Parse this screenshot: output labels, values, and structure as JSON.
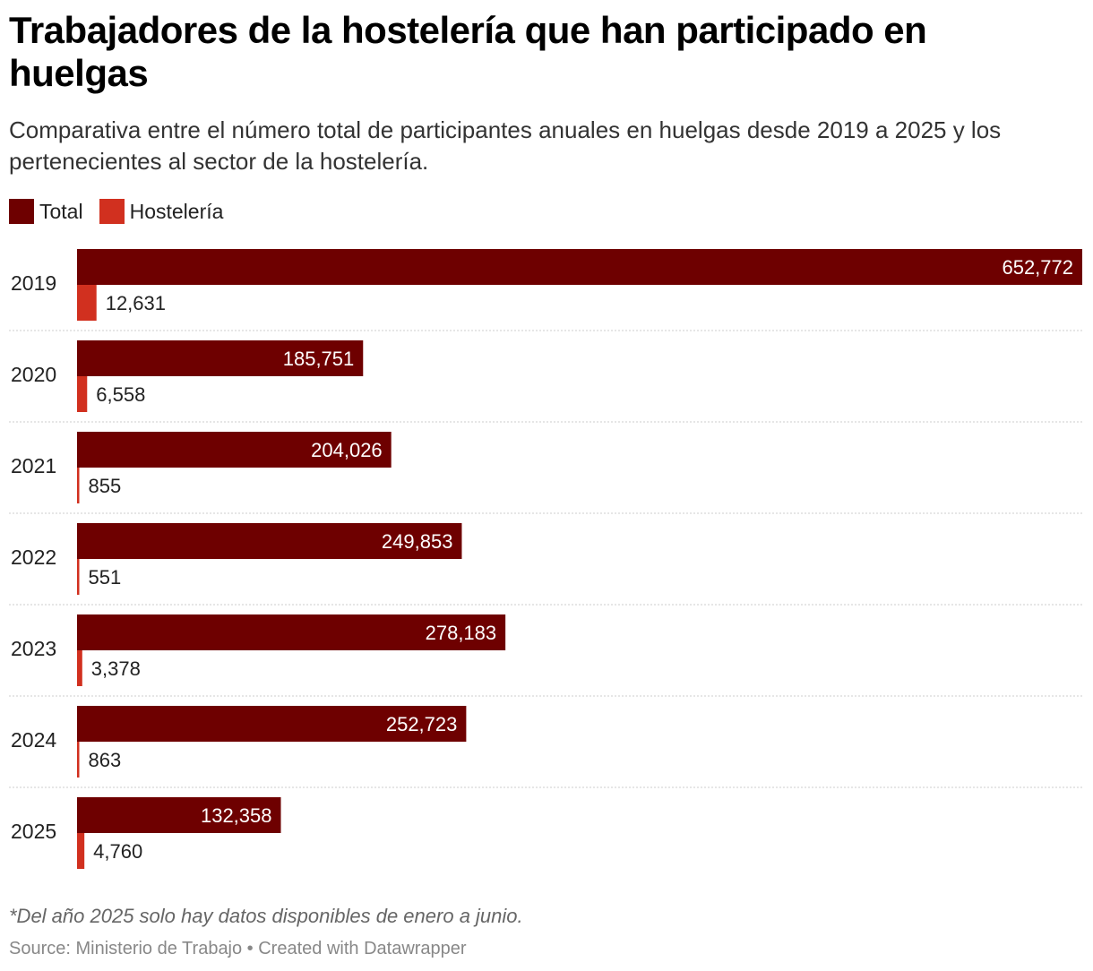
{
  "chart_data": {
    "type": "bar",
    "orientation": "horizontal",
    "title": "Trabajadores de la hostelería que han participado en huelgas",
    "subtitle": "Comparativa entre el número total de participantes anuales en huelgas desde 2019 a 2025 y los pertenecientes al sector de la hostelería.",
    "categories": [
      "2019",
      "2020",
      "2021",
      "2022",
      "2023",
      "2024",
      "2025"
    ],
    "series": [
      {
        "name": "Total",
        "color": "#6e0000",
        "values": [
          652772,
          185751,
          204026,
          249853,
          278183,
          252723,
          132358
        ],
        "labels": [
          "652,772",
          "185,751",
          "204,026",
          "249,853",
          "278,183",
          "252,723",
          "132,358"
        ]
      },
      {
        "name": "Hostelería",
        "color": "#d1301f",
        "values": [
          12631,
          6558,
          855,
          551,
          3378,
          863,
          4760
        ],
        "labels": [
          "12,631",
          "6,558",
          "855",
          "551",
          "3,378",
          "863",
          "4,760"
        ]
      }
    ],
    "xlim": [
      0,
      652772
    ],
    "legend_position": "top-left",
    "grid": false
  },
  "footer": {
    "note": "*Del año 2025 solo hay datos disponibles de enero a junio.",
    "source": "Source: Ministerio de Trabajo • Created with Datawrapper"
  }
}
